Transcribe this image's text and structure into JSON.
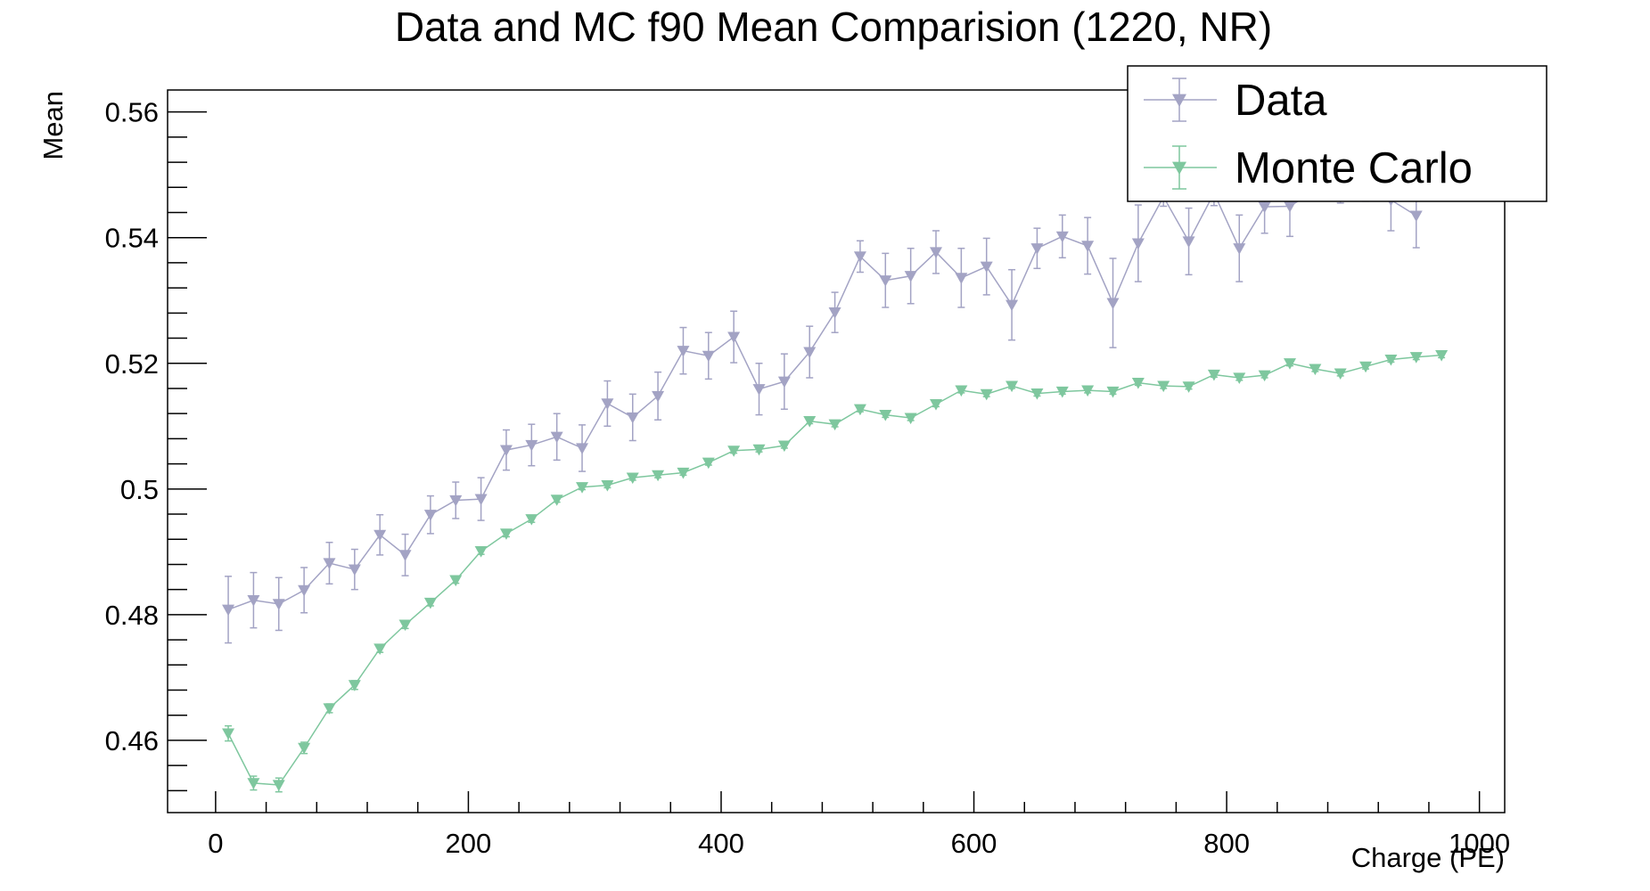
{
  "chart_data": {
    "type": "scatter",
    "title": "Data and MC f90 Mean Comparision (1220, NR)",
    "xlabel": "Charge (PE)",
    "ylabel": "Mean",
    "xlim": [
      -38,
      1020
    ],
    "ylim": [
      0.4485,
      0.5635
    ],
    "x_ticks": [
      0,
      200,
      400,
      600,
      800,
      1000
    ],
    "x_tick_labels": [
      "0",
      "200",
      "400",
      "600",
      "800",
      "1000"
    ],
    "y_ticks": [
      0.46,
      0.48,
      0.5,
      0.52,
      0.54,
      0.56
    ],
    "y_tick_labels": [
      "0.46",
      "0.48",
      "0.5",
      "0.52",
      "0.54",
      "0.56"
    ],
    "grid": false,
    "legend_position": "top-right",
    "series": [
      {
        "name": "Data",
        "color": "#a3a3c4",
        "marker": "triangle-down",
        "x": [
          10,
          30,
          50,
          70,
          90,
          110,
          130,
          150,
          170,
          190,
          210,
          230,
          250,
          270,
          290,
          310,
          330,
          350,
          370,
          390,
          410,
          430,
          450,
          470,
          490,
          510,
          530,
          550,
          570,
          590,
          610,
          630,
          650,
          670,
          690,
          710,
          730,
          750,
          770,
          790,
          810,
          830,
          850,
          870,
          890,
          910,
          930,
          950
        ],
        "y": [
          0.4808,
          0.4823,
          0.4817,
          0.4839,
          0.4882,
          0.4872,
          0.4927,
          0.4895,
          0.4959,
          0.4982,
          0.4984,
          0.5062,
          0.507,
          0.5083,
          0.5065,
          0.5136,
          0.5114,
          0.5148,
          0.522,
          0.5212,
          0.5242,
          0.5159,
          0.5171,
          0.5218,
          0.5281,
          0.537,
          0.5332,
          0.5339,
          0.5377,
          0.5336,
          0.5354,
          0.5293,
          0.5383,
          0.5402,
          0.5387,
          0.5296,
          0.5391,
          0.5465,
          0.5394,
          0.5471,
          0.5383,
          0.5449,
          0.545,
          0.5475,
          0.547,
          0.5478,
          0.546,
          0.5435
        ],
        "yerr": [
          0.0053,
          0.0044,
          0.0042,
          0.0036,
          0.0033,
          0.0032,
          0.0032,
          0.0033,
          0.003,
          0.0029,
          0.0034,
          0.0032,
          0.0033,
          0.0037,
          0.0037,
          0.0036,
          0.0037,
          0.0038,
          0.0037,
          0.0037,
          0.0041,
          0.0041,
          0.0044,
          0.0041,
          0.0032,
          0.0025,
          0.0043,
          0.0044,
          0.0034,
          0.0047,
          0.0045,
          0.0056,
          0.0032,
          0.0034,
          0.0045,
          0.0071,
          0.0061,
          0.0015,
          0.0053,
          0.002,
          0.0053,
          0.0042,
          0.0048,
          0.0013,
          0.0015,
          0.002,
          0.0049,
          0.0051
        ]
      },
      {
        "name": "Monte Carlo",
        "color": "#7ec79e",
        "marker": "triangle-down",
        "x": [
          10,
          30,
          50,
          70,
          90,
          110,
          130,
          150,
          170,
          190,
          210,
          230,
          250,
          270,
          290,
          310,
          330,
          350,
          370,
          390,
          410,
          430,
          450,
          470,
          490,
          510,
          530,
          550,
          570,
          590,
          610,
          630,
          650,
          670,
          690,
          710,
          730,
          750,
          770,
          790,
          810,
          830,
          850,
          870,
          890,
          910,
          930,
          950,
          970
        ],
        "y": [
          0.4611,
          0.4532,
          0.4529,
          0.4588,
          0.4651,
          0.4688,
          0.4746,
          0.4784,
          0.4819,
          0.4855,
          0.4901,
          0.4929,
          0.4952,
          0.4983,
          0.5003,
          0.5006,
          0.5018,
          0.5022,
          0.5026,
          0.5042,
          0.5061,
          0.5063,
          0.5069,
          0.5108,
          0.5103,
          0.5127,
          0.5118,
          0.5113,
          0.5135,
          0.5157,
          0.5151,
          0.5164,
          0.5152,
          0.5155,
          0.5157,
          0.5155,
          0.5169,
          0.5164,
          0.5163,
          0.5182,
          0.5177,
          0.5181,
          0.52,
          0.5191,
          0.5184,
          0.5195,
          0.5206,
          0.521,
          0.5213
        ],
        "yerr": [
          0.0012,
          0.0011,
          0.0011,
          0.0009,
          0.0007,
          0.0007,
          0.0006,
          0.0006,
          0.0005,
          0.0005,
          0.0005,
          0.0005,
          0.0005,
          0.0004,
          0.0004,
          0.0004,
          0.0004,
          0.0004,
          0.0004,
          0.0004,
          0.0004,
          0.0004,
          0.0004,
          0.0004,
          0.0004,
          0.0004,
          0.0004,
          0.0004,
          0.0004,
          0.0004,
          0.0004,
          0.0004,
          0.0004,
          0.0004,
          0.0004,
          0.0004,
          0.0004,
          0.0004,
          0.0004,
          0.0004,
          0.0004,
          0.0004,
          0.0004,
          0.0004,
          0.0004,
          0.0004,
          0.0004,
          0.0004,
          0.0004
        ]
      }
    ]
  }
}
